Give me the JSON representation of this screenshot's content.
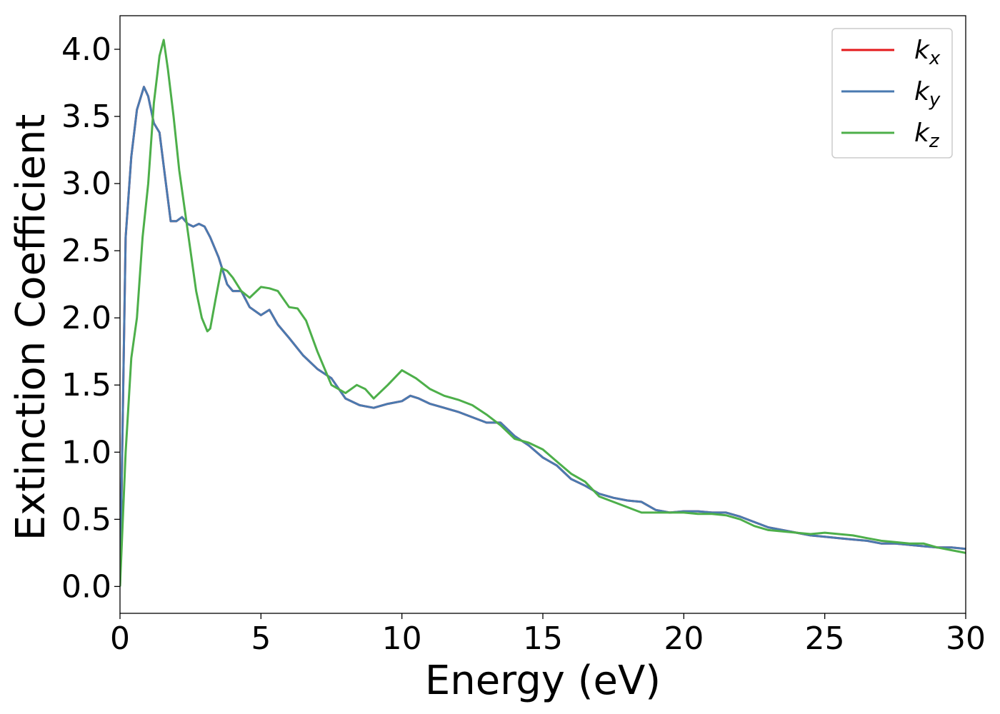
{
  "chart_data": {
    "type": "line",
    "title": "",
    "xlabel": "Energy (eV)",
    "ylabel": "Extinction Coefficient",
    "xlim": [
      0,
      30
    ],
    "ylim": [
      -0.2,
      4.25
    ],
    "xticks": [
      0,
      5,
      10,
      15,
      20,
      25,
      30
    ],
    "yticks": [
      0.0,
      0.5,
      1.0,
      1.5,
      2.0,
      2.5,
      3.0,
      3.5,
      4.0
    ],
    "grid": false,
    "legend_position": "top-right",
    "series": [
      {
        "name": "k",
        "sub": "x",
        "color": "#e41a1c",
        "x": [
          0,
          0.2,
          0.4,
          0.6,
          0.85,
          1.0,
          1.2,
          1.4,
          1.6,
          1.8,
          2.0,
          2.2,
          2.4,
          2.6,
          2.8,
          3.0,
          3.2,
          3.5,
          3.8,
          4.0,
          4.3,
          4.6,
          5.0,
          5.3,
          5.6,
          6.0,
          6.5,
          7.0,
          7.5,
          8.0,
          8.5,
          9.0,
          9.5,
          10.0,
          10.3,
          10.6,
          11.0,
          11.5,
          12.0,
          12.5,
          13.0,
          13.5,
          14.0,
          14.5,
          15.0,
          15.5,
          16.0,
          16.5,
          17.0,
          17.5,
          18.0,
          18.5,
          19.0,
          19.5,
          20.0,
          20.5,
          21.0,
          21.5,
          22.0,
          22.5,
          23.0,
          23.5,
          24.0,
          24.5,
          25.0,
          25.5,
          26.0,
          26.5,
          27.0,
          27.5,
          28.0,
          28.5,
          29.0,
          29.5,
          30.0
        ],
        "y": [
          0.0,
          2.6,
          3.2,
          3.55,
          3.72,
          3.65,
          3.45,
          3.38,
          3.05,
          2.72,
          2.72,
          2.75,
          2.7,
          2.68,
          2.7,
          2.68,
          2.6,
          2.45,
          2.25,
          2.2,
          2.2,
          2.08,
          2.02,
          2.06,
          1.95,
          1.85,
          1.72,
          1.62,
          1.55,
          1.4,
          1.35,
          1.33,
          1.36,
          1.38,
          1.42,
          1.4,
          1.36,
          1.33,
          1.3,
          1.26,
          1.22,
          1.22,
          1.12,
          1.05,
          0.96,
          0.9,
          0.8,
          0.75,
          0.69,
          0.66,
          0.64,
          0.63,
          0.57,
          0.55,
          0.56,
          0.56,
          0.55,
          0.55,
          0.52,
          0.48,
          0.44,
          0.42,
          0.4,
          0.38,
          0.37,
          0.36,
          0.35,
          0.34,
          0.32,
          0.32,
          0.31,
          0.3,
          0.29,
          0.29,
          0.28
        ]
      },
      {
        "name": "k",
        "sub": "y",
        "color": "#4a7ab0",
        "x": [
          0,
          0.2,
          0.4,
          0.6,
          0.85,
          1.0,
          1.2,
          1.4,
          1.6,
          1.8,
          2.0,
          2.2,
          2.4,
          2.6,
          2.8,
          3.0,
          3.2,
          3.5,
          3.8,
          4.0,
          4.3,
          4.6,
          5.0,
          5.3,
          5.6,
          6.0,
          6.5,
          7.0,
          7.5,
          8.0,
          8.5,
          9.0,
          9.5,
          10.0,
          10.3,
          10.6,
          11.0,
          11.5,
          12.0,
          12.5,
          13.0,
          13.5,
          14.0,
          14.5,
          15.0,
          15.5,
          16.0,
          16.5,
          17.0,
          17.5,
          18.0,
          18.5,
          19.0,
          19.5,
          20.0,
          20.5,
          21.0,
          21.5,
          22.0,
          22.5,
          23.0,
          23.5,
          24.0,
          24.5,
          25.0,
          25.5,
          26.0,
          26.5,
          27.0,
          27.5,
          28.0,
          28.5,
          29.0,
          29.5,
          30.0
        ],
        "y": [
          0.0,
          2.6,
          3.2,
          3.55,
          3.72,
          3.65,
          3.45,
          3.38,
          3.05,
          2.72,
          2.72,
          2.75,
          2.7,
          2.68,
          2.7,
          2.68,
          2.6,
          2.45,
          2.25,
          2.2,
          2.2,
          2.08,
          2.02,
          2.06,
          1.95,
          1.85,
          1.72,
          1.62,
          1.55,
          1.4,
          1.35,
          1.33,
          1.36,
          1.38,
          1.42,
          1.4,
          1.36,
          1.33,
          1.3,
          1.26,
          1.22,
          1.22,
          1.12,
          1.05,
          0.96,
          0.9,
          0.8,
          0.75,
          0.69,
          0.66,
          0.64,
          0.63,
          0.57,
          0.55,
          0.56,
          0.56,
          0.55,
          0.55,
          0.52,
          0.48,
          0.44,
          0.42,
          0.4,
          0.38,
          0.37,
          0.36,
          0.35,
          0.34,
          0.32,
          0.32,
          0.31,
          0.3,
          0.29,
          0.29,
          0.28
        ]
      },
      {
        "name": "k",
        "sub": "z",
        "color": "#4daf4a",
        "x": [
          0,
          0.2,
          0.4,
          0.6,
          0.8,
          1.0,
          1.2,
          1.4,
          1.55,
          1.7,
          1.9,
          2.1,
          2.3,
          2.5,
          2.7,
          2.9,
          3.1,
          3.2,
          3.4,
          3.6,
          3.8,
          4.0,
          4.3,
          4.6,
          5.0,
          5.3,
          5.6,
          6.0,
          6.3,
          6.6,
          7.0,
          7.5,
          8.0,
          8.4,
          8.7,
          9.0,
          9.5,
          10.0,
          10.5,
          11.0,
          11.5,
          12.0,
          12.5,
          13.0,
          13.5,
          14.0,
          14.5,
          15.0,
          15.5,
          16.0,
          16.5,
          17.0,
          17.5,
          18.0,
          18.5,
          19.0,
          19.5,
          20.0,
          20.5,
          21.0,
          21.5,
          22.0,
          22.5,
          23.0,
          23.5,
          24.0,
          24.5,
          25.0,
          25.5,
          26.0,
          26.5,
          27.0,
          27.5,
          28.0,
          28.5,
          29.0,
          29.5,
          30.0
        ],
        "y": [
          0.0,
          1.0,
          1.7,
          2.0,
          2.6,
          3.0,
          3.6,
          3.95,
          4.07,
          3.85,
          3.5,
          3.1,
          2.8,
          2.5,
          2.2,
          2.0,
          1.9,
          1.92,
          2.15,
          2.37,
          2.35,
          2.3,
          2.2,
          2.15,
          2.23,
          2.22,
          2.2,
          2.08,
          2.07,
          1.98,
          1.75,
          1.5,
          1.44,
          1.5,
          1.47,
          1.4,
          1.5,
          1.61,
          1.55,
          1.47,
          1.42,
          1.39,
          1.35,
          1.28,
          1.2,
          1.1,
          1.07,
          1.02,
          0.93,
          0.84,
          0.78,
          0.67,
          0.63,
          0.59,
          0.55,
          0.55,
          0.55,
          0.55,
          0.54,
          0.54,
          0.53,
          0.5,
          0.45,
          0.42,
          0.41,
          0.4,
          0.39,
          0.4,
          0.39,
          0.38,
          0.36,
          0.34,
          0.33,
          0.32,
          0.32,
          0.29,
          0.27,
          0.25
        ]
      }
    ]
  }
}
